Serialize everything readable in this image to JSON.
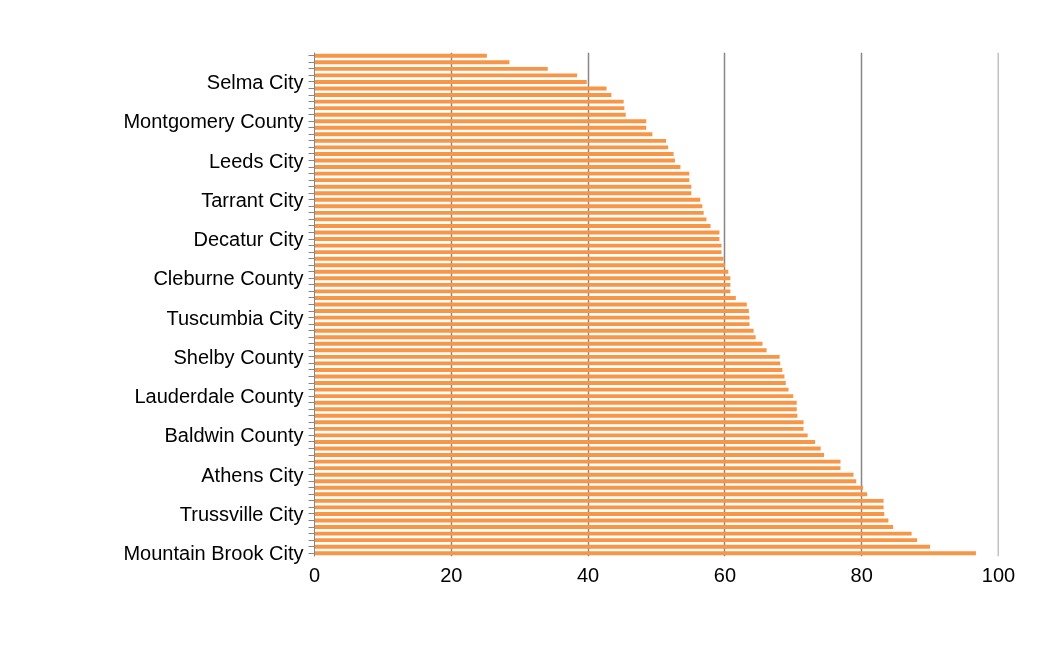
{
  "chart_data": {
    "type": "bar",
    "orientation": "horizontal",
    "categories": [
      null,
      null,
      null,
      null,
      "Selma City",
      null,
      null,
      null,
      null,
      null,
      "Montgomery County",
      null,
      null,
      null,
      null,
      null,
      "Leeds City",
      null,
      null,
      null,
      null,
      null,
      "Tarrant City",
      null,
      null,
      null,
      null,
      null,
      "Decatur City",
      null,
      null,
      null,
      null,
      null,
      "Cleburne County",
      null,
      null,
      null,
      null,
      null,
      "Tuscumbia City",
      null,
      null,
      null,
      null,
      null,
      "Shelby County",
      null,
      null,
      null,
      null,
      null,
      "Lauderdale County",
      null,
      null,
      null,
      null,
      null,
      "Baldwin County",
      null,
      null,
      null,
      null,
      null,
      "Athens City",
      null,
      null,
      null,
      null,
      null,
      "Trussville City",
      null,
      null,
      null,
      null,
      null,
      "Mountain Brook City"
    ],
    "values": [
      25.2,
      28.5,
      34.1,
      38.4,
      39.8,
      42.7,
      43.4,
      45.2,
      45.3,
      45.5,
      48.5,
      48.5,
      49.4,
      51.4,
      51.7,
      52.5,
      52.7,
      53.5,
      54.8,
      54.8,
      55.1,
      55.1,
      56.4,
      56.7,
      56.9,
      57.3,
      57.9,
      59.2,
      59.2,
      59.5,
      59.5,
      59.8,
      60.0,
      60.5,
      60.8,
      60.8,
      60.8,
      61.6,
      63.2,
      63.5,
      63.6,
      63.6,
      64.2,
      64.5,
      65.5,
      66.1,
      68.0,
      68.1,
      68.4,
      68.7,
      68.9,
      69.3,
      70.0,
      70.5,
      70.5,
      70.6,
      71.5,
      71.5,
      72.1,
      73.2,
      74.0,
      74.5,
      76.9,
      76.9,
      78.8,
      79.2,
      80.2,
      80.8,
      83.2,
      83.2,
      83.3,
      83.9,
      84.6,
      87.3,
      88.1,
      90.0,
      96.7
    ],
    "color": "#f79646",
    "xlim": [
      0,
      100
    ],
    "xticks": [
      0,
      20,
      40,
      60,
      80,
      100
    ],
    "grid": "x"
  }
}
